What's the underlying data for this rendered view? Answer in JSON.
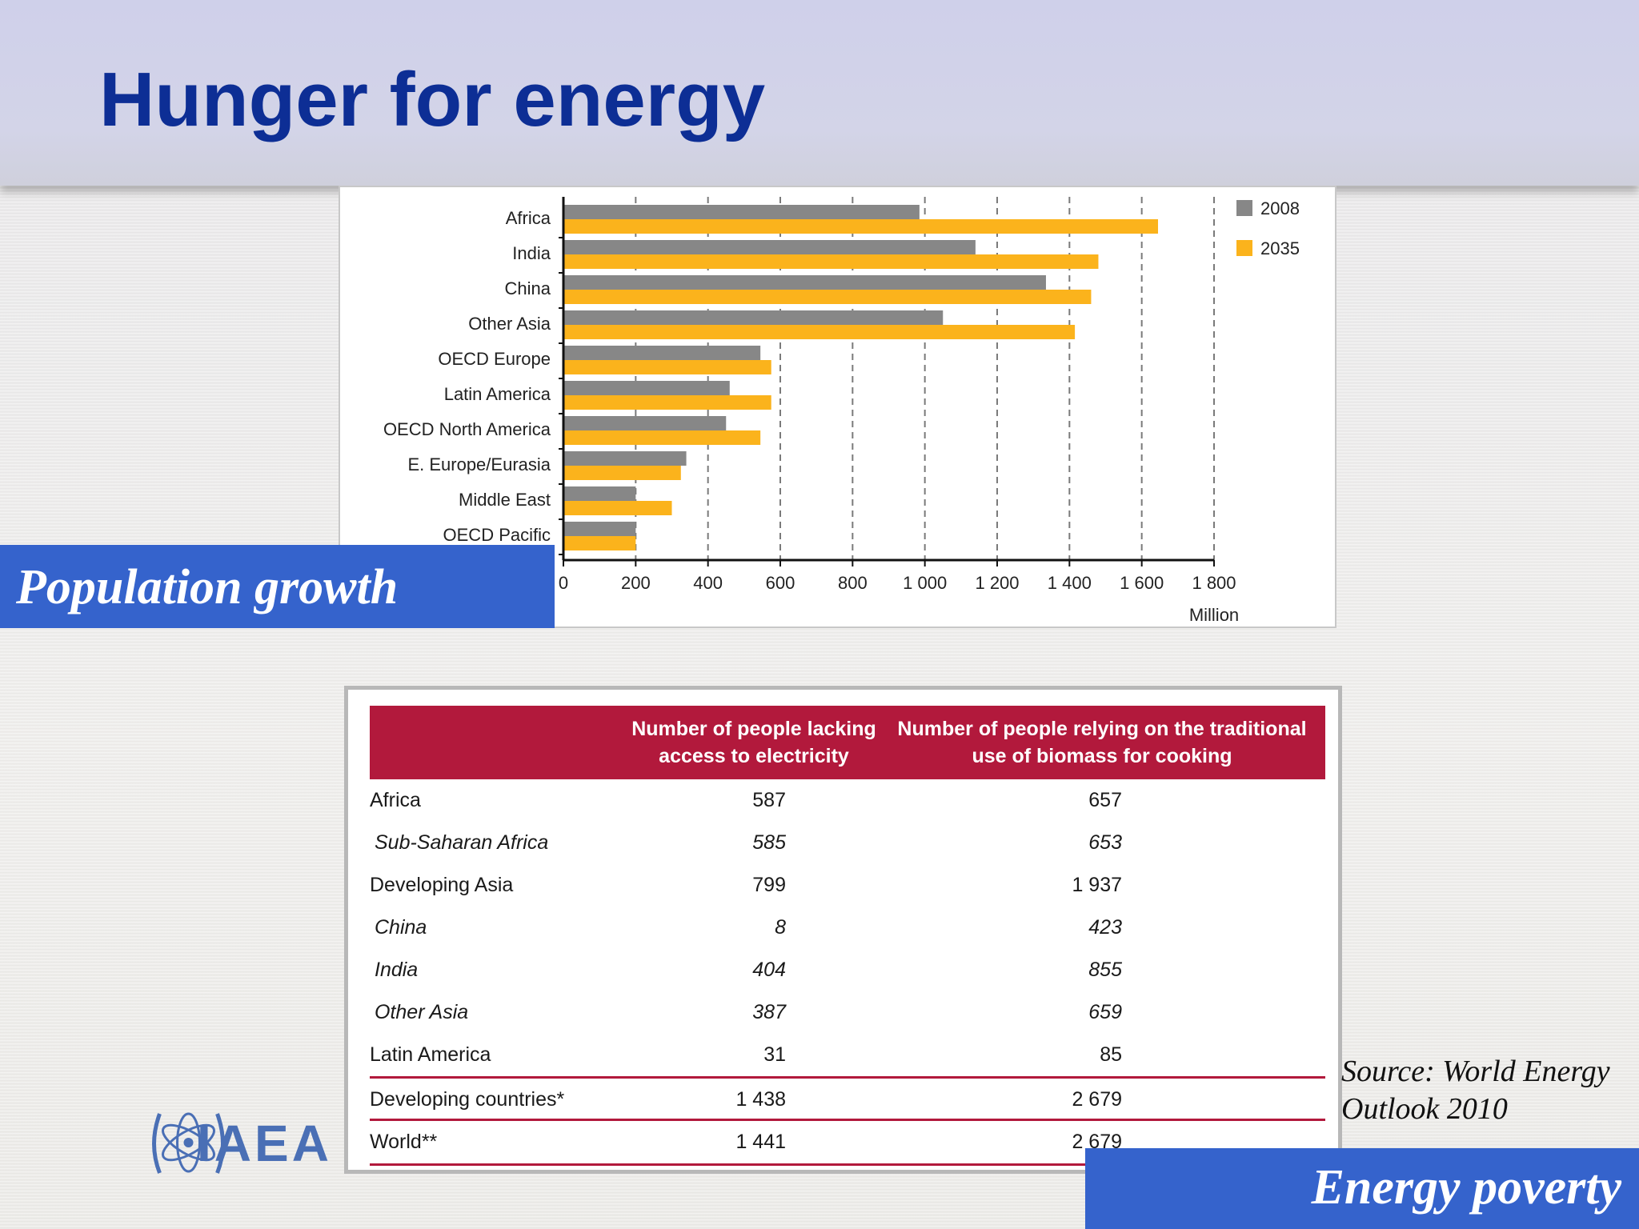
{
  "slide": {
    "title": "Hunger for energy",
    "population_label": "Population growth",
    "poverty_label": "Energy poverty",
    "source_line1": "Source: World Energy",
    "source_line2": "Outlook 2010",
    "logo_text": "IAEA"
  },
  "colors": {
    "title": "#0d2e95",
    "label_box": "#3563cc",
    "bar_2008": "#878787",
    "bar_2035": "#fbb31c",
    "table_header": "#b2193c"
  },
  "chart_data": {
    "type": "bar",
    "orientation": "horizontal",
    "categories": [
      "Africa",
      "India",
      "China",
      "Other Asia",
      "OECD Europe",
      "Latin America",
      "OECD North America",
      "E. Europe/Eurasia",
      "Middle East",
      "OECD Pacific"
    ],
    "series": [
      {
        "name": "2008",
        "color": "#878787",
        "values": [
          985,
          1140,
          1335,
          1050,
          545,
          460,
          450,
          340,
          200,
          200
        ]
      },
      {
        "name": "2035",
        "color": "#fbb31c",
        "values": [
          1645,
          1480,
          1460,
          1415,
          575,
          575,
          545,
          325,
          300,
          200
        ]
      }
    ],
    "xlim": [
      0,
      1800
    ],
    "xticks": [
      0,
      200,
      400,
      600,
      800,
      1000,
      1200,
      1400,
      1600,
      1800
    ],
    "xtick_labels": [
      "0",
      "200",
      "400",
      "600",
      "800",
      "1 000",
      "1 200",
      "1 400",
      "1 600",
      "1 800"
    ],
    "xlabel": "Million",
    "grid": "vertical dashed",
    "legend_position": "top-right"
  },
  "table": {
    "col1_header_line1": "Number of people lacking",
    "col1_header_line2": "access to electricity",
    "col2_header_line1": "Number of people relying on the traditional",
    "col2_header_line2": "use of biomass for cooking",
    "rows": [
      {
        "label": "Africa",
        "electricity": "587",
        "biomass": "657"
      },
      {
        "label": "Sub-Saharan Africa",
        "electricity": "585",
        "biomass": "653"
      },
      {
        "label": "Developing Asia",
        "electricity": "799",
        "biomass": "1 937"
      },
      {
        "label": "China",
        "electricity": "8",
        "biomass": "423"
      },
      {
        "label": "India",
        "electricity": "404",
        "biomass": "855"
      },
      {
        "label": "Other Asia",
        "electricity": "387",
        "biomass": "659"
      },
      {
        "label": "Latin America",
        "electricity": "31",
        "biomass": "85"
      },
      {
        "label": "Developing countries*",
        "electricity": "1 438",
        "biomass": "2 679"
      },
      {
        "label": "World**",
        "electricity": "1 441",
        "biomass": "2 679"
      }
    ]
  }
}
